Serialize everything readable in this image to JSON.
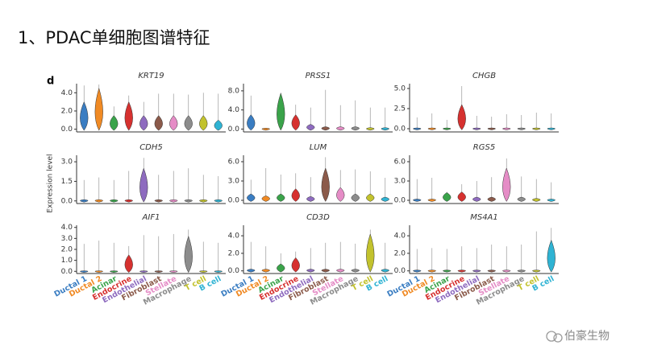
{
  "slide": {
    "title": "1、PDAC单细胞图谱特征",
    "watermark": "伯豪生物"
  },
  "chart_data": {
    "type": "violin",
    "panel_label": "d",
    "ylabel": "Expression level",
    "categories": [
      "Ductal 1",
      "Ductal 2",
      "Acinar",
      "Endocrine",
      "Endothelial",
      "Fibroblast",
      "Stellate",
      "Macrophage",
      "T cell",
      "B cell"
    ],
    "colors": [
      "#3a7dc2",
      "#f08a24",
      "#3aa34a",
      "#d6312f",
      "#8e6bbf",
      "#8b5a4a",
      "#e58cc6",
      "#8c8c8c",
      "#c2c22d",
      "#2fb3d3"
    ],
    "panels": [
      {
        "title": "KRT19",
        "ylim": [
          -0.3,
          5
        ],
        "yticks": [
          {
            "value": 0,
            "label": "0.0"
          },
          {
            "value": 2,
            "label": "2.0"
          },
          {
            "value": 4,
            "label": "4.0"
          }
        ],
        "values": [
          4.8,
          4.9,
          2.5,
          3.7,
          3.0,
          3.9,
          3.9,
          3.8,
          4.0,
          3.9
        ],
        "body_top": [
          3.0,
          4.5,
          1.5,
          3.0,
          1.5,
          1.5,
          1.5,
          1.5,
          1.5,
          1.0
        ]
      },
      {
        "title": "PRSS1",
        "ylim": [
          -0.6,
          9.5
        ],
        "yticks": [
          {
            "value": 0,
            "label": "0.0"
          },
          {
            "value": 4,
            "label": "4.0"
          },
          {
            "value": 8,
            "label": "8.0"
          }
        ],
        "values": [
          7.0,
          0.2,
          7.6,
          5.1,
          4.5,
          8.2,
          5.0,
          6.0,
          4.5,
          4.5
        ],
        "body_top": [
          3.0,
          0.2,
          7.5,
          3.0,
          1.0,
          0.5,
          0.5,
          0.5,
          0.3,
          0.3
        ]
      },
      {
        "title": "CHGB",
        "ylim": [
          -0.4,
          5.6
        ],
        "yticks": [
          {
            "value": 0,
            "label": "0.0"
          },
          2.5,
          {
            "value": 5,
            "label": "5.0"
          }
        ],
        "values": [
          1.4,
          1.9,
          1.1,
          5.3,
          1.6,
          1.5,
          1.8,
          1.7,
          2.0,
          1.9
        ],
        "body_top": [
          0.1,
          0.1,
          0.1,
          3.0,
          0.1,
          0.1,
          0.1,
          0.1,
          0.1,
          0.1
        ]
      },
      {
        "title": "CDH5",
        "ylim": [
          -0.2,
          3.5
        ],
        "yticks": [
          {
            "value": 0,
            "label": "0.0"
          },
          1.5,
          {
            "value": 3,
            "label": "3.0"
          }
        ],
        "values": [
          1.6,
          1.8,
          1.6,
          2.3,
          3.3,
          2.0,
          2.3,
          2.5,
          2.0,
          1.9
        ],
        "body_top": [
          0.1,
          0.1,
          0.1,
          0.1,
          2.5,
          0.1,
          0.1,
          0.1,
          0.1,
          0.1
        ]
      },
      {
        "title": "LUM",
        "ylim": [
          -0.5,
          7
        ],
        "yticks": [
          {
            "value": 0,
            "label": "0.0"
          },
          {
            "value": 3,
            "label": "3.0"
          },
          {
            "value": 6,
            "label": "6.0"
          }
        ],
        "values": [
          3.2,
          5.0,
          4.0,
          4.2,
          3.6,
          6.7,
          4.7,
          4.8,
          4.5,
          3.5
        ],
        "body_top": [
          1.0,
          0.7,
          1.0,
          1.8,
          0.6,
          5.0,
          2.0,
          1.0,
          1.0,
          0.5
        ]
      },
      {
        "title": "RGS5",
        "ylim": [
          -0.5,
          7
        ],
        "yticks": [
          {
            "value": 0,
            "label": "0.0"
          },
          {
            "value": 3,
            "label": "3.0"
          },
          {
            "value": 6,
            "label": "6.0"
          }
        ],
        "values": [
          3.3,
          3.5,
          1.3,
          2.5,
          3.0,
          3.6,
          6.5,
          3.7,
          3.3,
          2.8
        ],
        "body_top": [
          0.2,
          0.2,
          1.2,
          1.3,
          0.5,
          0.5,
          5.0,
          0.5,
          0.3,
          0.2
        ]
      },
      {
        "title": "AIF1",
        "ylim": [
          -0.2,
          4.2
        ],
        "yticks": [
          {
            "value": 0,
            "label": "0.0"
          },
          {
            "value": 1,
            "label": "1.0"
          },
          {
            "value": 2,
            "label": "2.0"
          },
          {
            "value": 3,
            "label": "3.0"
          },
          {
            "value": 4,
            "label": "4.0"
          }
        ],
        "values": [
          2.5,
          2.8,
          2.6,
          2.3,
          3.3,
          3.2,
          3.4,
          3.8,
          2.7,
          2.6
        ],
        "body_top": [
          0.05,
          0.05,
          0.05,
          1.5,
          0.05,
          0.05,
          0.05,
          3.2,
          0.05,
          0.05
        ]
      },
      {
        "title": "CD3D",
        "ylim": [
          -0.3,
          5.2
        ],
        "yticks": [
          {
            "value": 0,
            "label": "0.0"
          },
          {
            "value": 2,
            "label": "2.0"
          },
          {
            "value": 4,
            "label": "4.0"
          }
        ],
        "values": [
          3.3,
          2.8,
          2.0,
          2.2,
          2.6,
          3.2,
          3.3,
          3.1,
          4.7,
          3.2
        ],
        "body_top": [
          0.2,
          0.2,
          0.8,
          1.5,
          0.2,
          0.2,
          0.2,
          0.2,
          4.2,
          0.2
        ]
      },
      {
        "title": "MS4A1",
        "ylim": [
          -0.3,
          5.2
        ],
        "yticks": [
          {
            "value": 0,
            "label": "0.0"
          },
          {
            "value": 2,
            "label": "2.0"
          },
          {
            "value": 4,
            "label": "4.0"
          }
        ],
        "values": [
          2.5,
          2.6,
          2.5,
          2.8,
          2.6,
          3.0,
          2.8,
          3.0,
          4.5,
          4.9
        ],
        "body_top": [
          0.1,
          0.1,
          0.1,
          0.1,
          0.1,
          0.1,
          0.1,
          0.1,
          0.1,
          3.5
        ]
      }
    ]
  }
}
